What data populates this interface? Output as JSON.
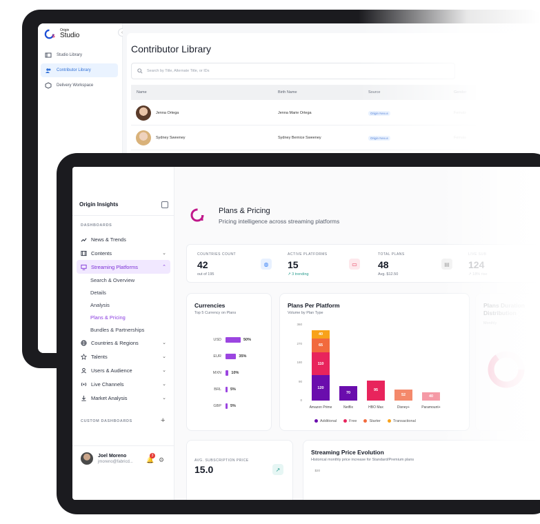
{
  "back_app": {
    "logo_small": "Origin",
    "logo_big": "Studio",
    "nav": [
      {
        "label": "Studio Library",
        "icon": "library-icon",
        "active": false
      },
      {
        "label": "Contributor Library",
        "icon": "users-icon",
        "active": true
      },
      {
        "label": "Delivery Workspace",
        "icon": "box-icon",
        "active": false
      }
    ],
    "title": "Contributor Library",
    "search_placeholder": "Search by Title, Alternate Title, or IDs",
    "columns": [
      "Name",
      "Birth Name",
      "Source",
      "Gender"
    ],
    "rows": [
      {
        "name": "Jenna Ortega",
        "birth_name": "Jenna Marie Ortega",
        "source": "Origin Nexus",
        "gender": "Female"
      },
      {
        "name": "Sydney Sweeney",
        "birth_name": "Sydney Bernice Sweeney",
        "source": "Origin Nexus",
        "gender": "Female"
      }
    ]
  },
  "sidebar": {
    "brand": "Origin Insights",
    "dashboards_label": "DASHBOARDS",
    "custom_label": "CUSTOM DASHBOARDS",
    "items": [
      {
        "label": "News & Trends",
        "icon": "trend-icon",
        "chevron": false
      },
      {
        "label": "Contents",
        "icon": "film-icon",
        "chevron": true
      },
      {
        "label": "Streaming Platforms",
        "icon": "monitor-icon",
        "chevron": true,
        "active": true
      }
    ],
    "sub_items": [
      {
        "label": "Search & Overview",
        "active": false
      },
      {
        "label": "Details",
        "active": false
      },
      {
        "label": "Analysis",
        "active": false
      },
      {
        "label": "Plans & Pricing",
        "active": true
      },
      {
        "label": "Bundles & Partnerships",
        "active": false
      }
    ],
    "items_after": [
      {
        "label": "Countries & Regions",
        "icon": "globe-icon"
      },
      {
        "label": "Talents",
        "icon": "star-icon"
      },
      {
        "label": "Users & Audience",
        "icon": "user-icon"
      },
      {
        "label": "Live Channels",
        "icon": "broadcast-icon"
      },
      {
        "label": "Market Analysis",
        "icon": "download-icon"
      }
    ],
    "user": {
      "name": "Joel Moreno",
      "email": "jmoreno@fabricd...",
      "notifications": "3"
    }
  },
  "header": {
    "title": "Plans & Pricing",
    "subtitle": "Pricing intelligence across streaming platforms"
  },
  "stats": [
    {
      "label": "COUNTRIES COUNT",
      "value": "42",
      "note": "out of 195",
      "icon": "globe-icon",
      "color": "#3b82f6",
      "bg": "#e8f1ff"
    },
    {
      "label": "ACTIVE PLATFORMS",
      "value": "15",
      "note": "↗ 3 trending",
      "icon": "monitor-icon",
      "color": "#e53958",
      "bg": "#fde8ec"
    },
    {
      "label": "TOTAL PLANS",
      "value": "48",
      "note": "Avg. $12.50",
      "icon": "document-icon",
      "color": "#999999",
      "bg": "#f1f1f1"
    },
    {
      "label": "LIVE SUB",
      "value": "124",
      "note": "↗ 18% rise",
      "icon": "",
      "color": "#999999",
      "bg": "#ffffff"
    }
  ],
  "currencies": {
    "title": "Currencies",
    "subtitle": "Top 5 Currency on Plans"
  },
  "plans_per_platform": {
    "title": "Plans Per Platform",
    "subtitle": "Volume by Plan Type"
  },
  "distribution": {
    "title": "Plans Duration Distribution",
    "subtitle": "Monthly"
  },
  "avg_price": {
    "label": "AVG. SUBSCRIPTION PRICE",
    "value": "15.0"
  },
  "evolution": {
    "title": "Streaming Price Evolution",
    "subtitle": "Historical monthly price increase for Standard/Premium plans",
    "axis_top": "$20"
  },
  "chart_data": [
    {
      "type": "bar",
      "title": "Currencies",
      "subtitle": "Top 5 Currency on Plans",
      "categories": [
        "USD",
        "EUR",
        "MXN",
        "BRL",
        "GBP"
      ],
      "values": [
        50,
        35,
        10,
        5,
        5
      ],
      "labels": [
        "50%",
        "35%",
        "10%",
        "5%",
        "5%"
      ],
      "orientation": "horizontal",
      "color": "#9b45e0"
    },
    {
      "type": "bar",
      "title": "Plans Per Platform",
      "subtitle": "Volume by Plan Type",
      "stacked": true,
      "categories": [
        "Amazon Prime",
        "Netflix",
        "HBO Max",
        "Disney+",
        "Paramount+"
      ],
      "yticks": [
        "0",
        "90",
        "180",
        "270",
        "360"
      ],
      "ylim": [
        0,
        360
      ],
      "series": [
        {
          "name": "Additional",
          "color": "#6a0dad",
          "values": [
            120,
            70,
            0,
            0,
            0
          ]
        },
        {
          "name": "Free",
          "color": "#e8245c",
          "values": [
            110,
            0,
            95,
            0,
            0
          ]
        },
        {
          "name": "Starter",
          "color": "#f26a3d",
          "values": [
            65,
            0,
            0,
            52,
            40
          ]
        },
        {
          "name": "Transactional",
          "color": "#f8a21a",
          "values": [
            40,
            0,
            0,
            0,
            0
          ]
        }
      ],
      "series_colors_override": {
        "HBO Max": "#e8245c",
        "Disney+": "#f4896b",
        "Paramount+": "#f59aa6"
      },
      "bar_labels": [
        [
          "120",
          "110",
          "65",
          "40"
        ],
        [
          "70"
        ],
        [
          "95"
        ],
        [
          "52"
        ],
        [
          "40"
        ]
      ]
    }
  ]
}
